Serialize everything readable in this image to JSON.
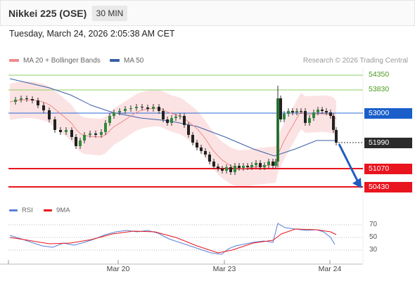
{
  "header": {
    "title": "Nikkei 225 (OSE)",
    "timeframe": "30 MIN"
  },
  "datetime": "Tuesday, March 24, 2026 2:05:38 AM CET",
  "legend": {
    "ma20_label": "MA 20 + Bollinger Bands",
    "ma50_label": "MA 50",
    "ma20_color": "#f08a8a",
    "ma50_color": "#3a5ea8"
  },
  "credit": "Research © 2026 Trading Central",
  "levels": {
    "l54350": "54350",
    "l53830": "53830",
    "l53000": "53000",
    "l51990": "51990",
    "l51070": "51070",
    "l50430": "50430"
  },
  "level_colors": {
    "resistance": "#4a9a1e",
    "pivot": "#1a5fc9",
    "last": "#2b2b2b",
    "support": "#e8141e"
  },
  "rsi": {
    "label": "RSI",
    "ma_label": "9MA",
    "levels": [
      "70",
      "50",
      "30"
    ],
    "rsi_color": "#5b7fd6",
    "ma_color": "#e8141e"
  },
  "x_axis": {
    "labels": [
      "Mar 20",
      "Mar 23",
      "Mar 24"
    ]
  },
  "chart_data": {
    "type": "candlestick",
    "symbol": "Nikkei 225 (OSE)",
    "interval": "30 MIN",
    "price_levels": [
      54350,
      53830,
      53000,
      51990,
      51070,
      50430
    ],
    "last_price": 51990,
    "forecast": "down toward 50430",
    "rsi_levels": [
      70,
      50,
      30
    ]
  }
}
